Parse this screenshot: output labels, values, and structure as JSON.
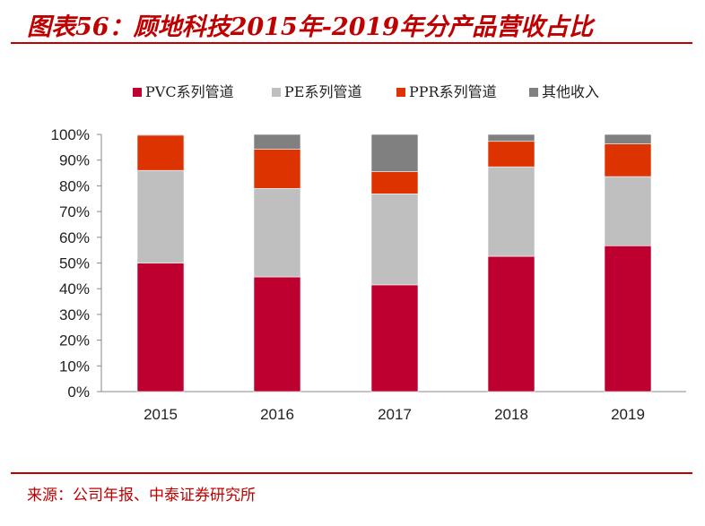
{
  "title": "图表56：顾地科技2015年-2019年分产品营收占比",
  "source": "来源：公司年报、中泰证券研究所",
  "chart_data": {
    "type": "bar",
    "stacked": true,
    "categories": [
      "2015",
      "2016",
      "2017",
      "2018",
      "2019"
    ],
    "ylim": [
      0,
      100
    ],
    "yticks": [
      "0%",
      "10%",
      "20%",
      "30%",
      "40%",
      "50%",
      "60%",
      "70%",
      "80%",
      "90%",
      "100%"
    ],
    "grid": false,
    "legend_position": "top",
    "series": [
      {
        "name": "PVC系列管道",
        "color": "#be0030",
        "values": [
          50,
          44.6,
          41.5,
          52.6,
          56.7
        ]
      },
      {
        "name": "PE系列管道",
        "color": "#bfbfbf",
        "values": [
          36,
          34.4,
          35.4,
          34.8,
          26.9
        ]
      },
      {
        "name": "PPR系列管道",
        "color": "#dc3300",
        "values": [
          13.7,
          15.3,
          8.6,
          9.9,
          12.7
        ]
      },
      {
        "name": "其他收入",
        "color": "#808080",
        "values": [
          0.3,
          5.7,
          14.5,
          2.7,
          3.7
        ]
      }
    ]
  }
}
